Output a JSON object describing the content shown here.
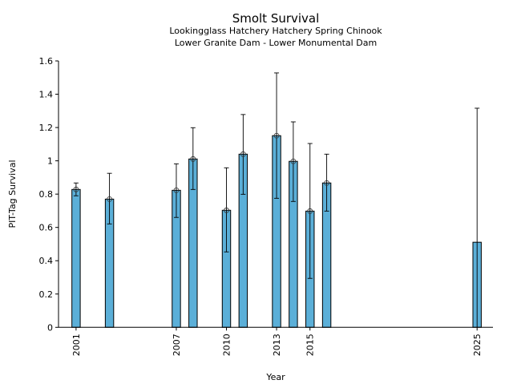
{
  "chart_data": {
    "type": "bar",
    "title": "Smolt Survival",
    "subtitle": [
      "Lookingglass Hatchery Hatchery Spring Chinook",
      "Lower Granite Dam - Lower Monumental Dam"
    ],
    "xlabel": "Year",
    "ylabel": "PIT-Tag Survival",
    "xlim": [
      1999.95,
      2025.95
    ],
    "ylim": [
      0,
      1.6
    ],
    "xticks": [
      2001,
      2007,
      2010,
      2013,
      2015,
      2025
    ],
    "yticks": [
      0,
      0.2,
      0.4,
      0.6,
      0.8,
      1,
      1.2,
      1.4,
      1.6
    ],
    "ytick_labels": [
      "0",
      "0.2",
      "0.4",
      "0.6",
      "0.8",
      "1",
      "1.2",
      "1.4",
      "1.6"
    ],
    "bar_color": "#5bafd8",
    "grid": false,
    "points": [
      {
        "year": 2001,
        "value": 0.828,
        "lower": 0.79,
        "upper": 0.867,
        "marker": true
      },
      {
        "year": 2003,
        "value": 0.77,
        "lower": 0.621,
        "upper": 0.925,
        "marker": true
      },
      {
        "year": 2007,
        "value": 0.823,
        "lower": 0.66,
        "upper": 0.982,
        "marker": true
      },
      {
        "year": 2008,
        "value": 1.011,
        "lower": 0.828,
        "upper": 1.199,
        "marker": true
      },
      {
        "year": 2010,
        "value": 0.703,
        "lower": 0.453,
        "upper": 0.958,
        "marker": true
      },
      {
        "year": 2011,
        "value": 1.04,
        "lower": 0.799,
        "upper": 1.278,
        "marker": true
      },
      {
        "year": 2013,
        "value": 1.151,
        "lower": 0.775,
        "upper": 1.528,
        "marker": true
      },
      {
        "year": 2014,
        "value": 0.997,
        "lower": 0.756,
        "upper": 1.234,
        "marker": true
      },
      {
        "year": 2015,
        "value": 0.698,
        "lower": 0.294,
        "upper": 1.104,
        "marker": true
      },
      {
        "year": 2016,
        "value": 0.867,
        "lower": 0.698,
        "upper": 1.04,
        "marker": true
      },
      {
        "year": 2025,
        "value": 0.511,
        "lower": 0,
        "upper": 1.316,
        "marker": false
      }
    ]
  }
}
